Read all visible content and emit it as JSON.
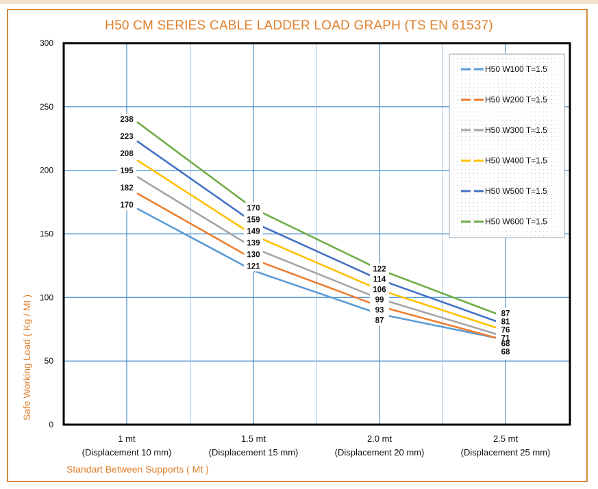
{
  "chart_data": {
    "type": "line",
    "title": "H50 CM SERIES CABLE LADDER LOAD GRAPH (TS EN 61537)",
    "xlabel": "Standart Between Supports ( Mt )",
    "ylabel": "Safe Working Load ( Kg / Mt )",
    "categories": [
      {
        "main": "1 mt",
        "sub": "(Displacement 10 mm)"
      },
      {
        "main": "1.5 mt",
        "sub": "(Displacement 15 mm)"
      },
      {
        "main": "2.0 mt",
        "sub": "(Displacement 20 mm)"
      },
      {
        "main": "2.5 mt",
        "sub": "(Displacement 25 mm)"
      }
    ],
    "ylim": [
      0,
      300
    ],
    "yticks": [
      0,
      50,
      100,
      150,
      200,
      250,
      300
    ],
    "grid": true,
    "legend_position": "top-right",
    "series": [
      {
        "name": "H50 W100 T=1.5",
        "color": "#5b9bd5",
        "values": [
          170,
          121,
          87,
          68
        ]
      },
      {
        "name": "H50 W200 T=1.5",
        "color": "#ed7d31",
        "values": [
          182,
          130,
          93,
          68
        ]
      },
      {
        "name": "H50 W300 T=1.5",
        "color": "#a5a5a5",
        "values": [
          195,
          139,
          99,
          71
        ]
      },
      {
        "name": "H50 W400 T=1.5",
        "color": "#ffc000",
        "values": [
          208,
          149,
          106,
          76
        ]
      },
      {
        "name": "H50 W500 T=1.5",
        "color": "#4472c4",
        "values": [
          223,
          159,
          114,
          81
        ]
      },
      {
        "name": "H50 W600 T=1.5",
        "color": "#70ad47",
        "values": [
          238,
          170,
          122,
          87
        ]
      }
    ]
  },
  "colors": {
    "frame": "#d8883e",
    "title": "#e07f2a",
    "gridline": "#5b9bd5",
    "plot_border": "#000000"
  }
}
